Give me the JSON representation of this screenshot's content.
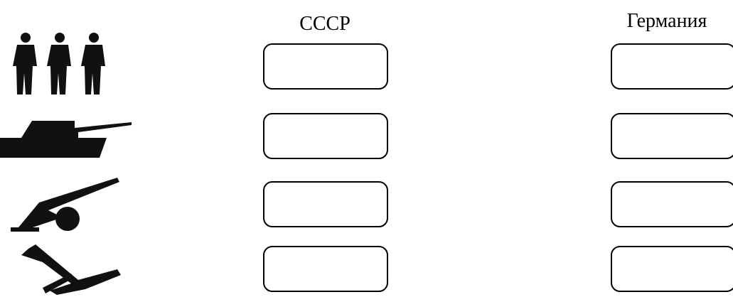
{
  "columns": [
    {
      "title": "СССР"
    },
    {
      "title": "Германия"
    }
  ]
}
